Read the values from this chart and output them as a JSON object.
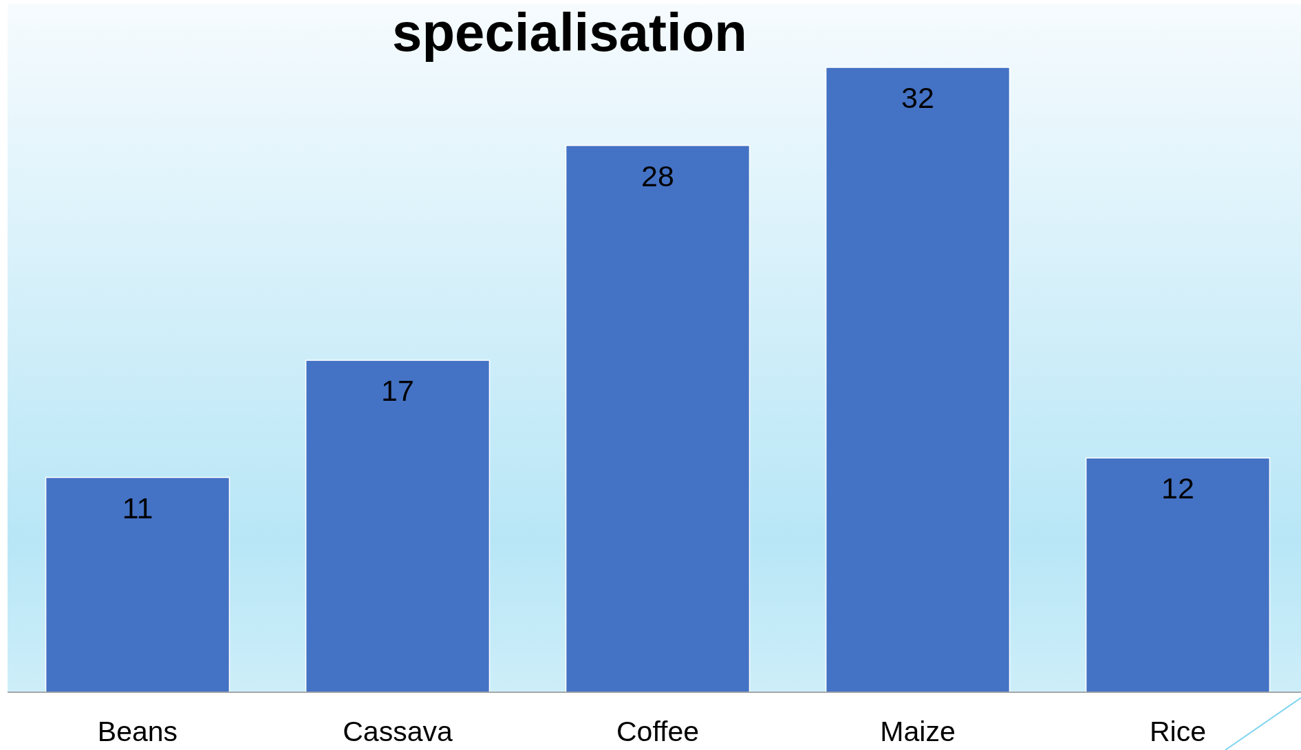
{
  "chart_data": {
    "type": "bar",
    "title": "specialisation",
    "categories": [
      "Beans",
      "Cassava",
      "Coffee",
      "Maize",
      "Rice"
    ],
    "values": [
      11,
      17,
      28,
      32,
      12
    ],
    "color": "#4472c4",
    "data_labels": true
  }
}
